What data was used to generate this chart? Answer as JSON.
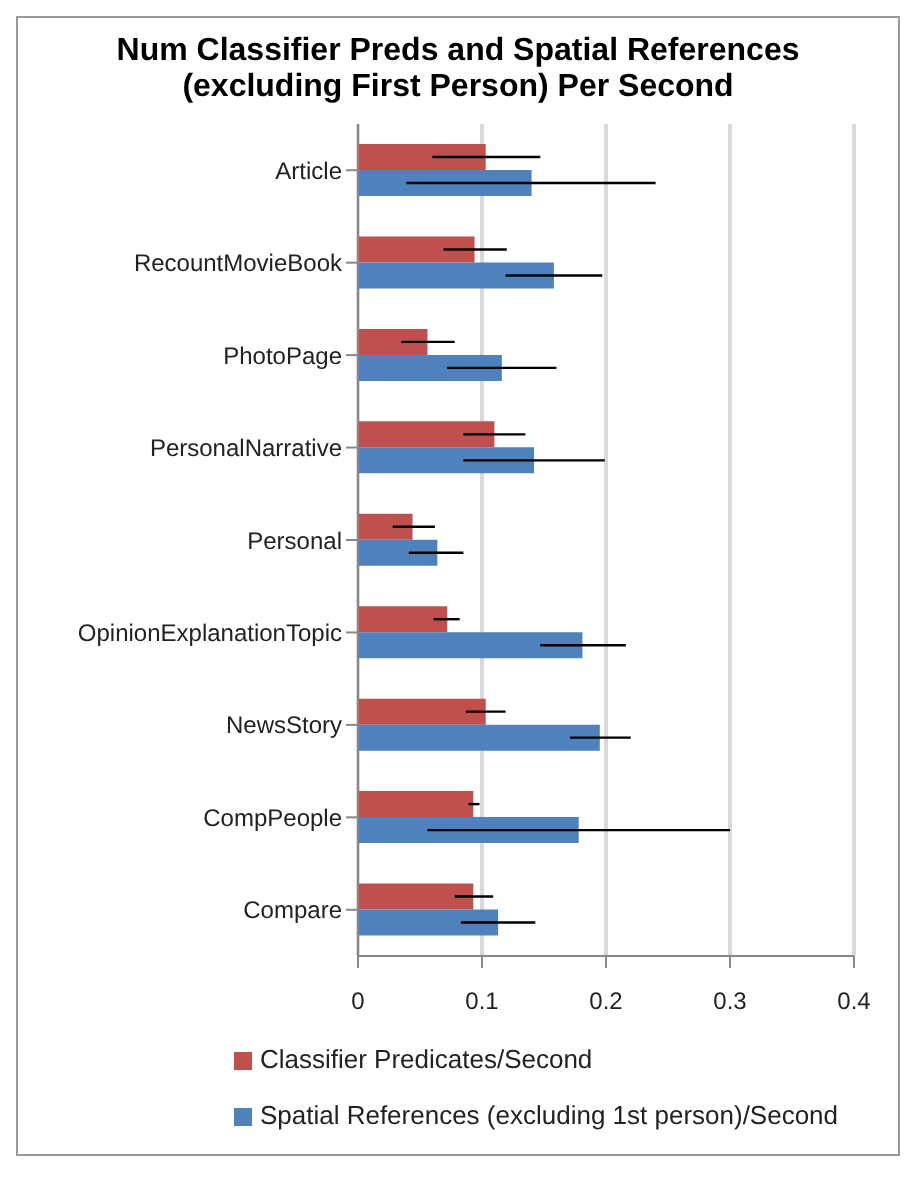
{
  "chart_data": {
    "type": "bar",
    "orientation": "horizontal",
    "title": "Num Classifier Preds and Spatial References (excluding First Person) Per Second",
    "categories": [
      "Article",
      "RecountMovieBook",
      "PhotoPage",
      "PersonalNarrative",
      "Personal",
      "OpinionExplanationTopic",
      "NewsStory",
      "CompPeople",
      "Compare"
    ],
    "series": [
      {
        "name": "Classifier Predicates/Second",
        "color": "#c0504d",
        "values": [
          0.103,
          0.094,
          0.056,
          0.11,
          0.044,
          0.072,
          0.103,
          0.093,
          0.093
        ],
        "errors": [
          [
            0.06,
            0.147
          ],
          [
            0.069,
            0.12
          ],
          [
            0.035,
            0.078
          ],
          [
            0.085,
            0.135
          ],
          [
            0.028,
            0.062
          ],
          [
            0.061,
            0.082
          ],
          [
            0.087,
            0.119
          ],
          [
            0.089,
            0.098
          ],
          [
            0.078,
            0.109
          ]
        ]
      },
      {
        "name": "Spatial References  (excluding 1st person)/Second",
        "color": "#4f81bd",
        "values": [
          0.14,
          0.158,
          0.116,
          0.142,
          0.064,
          0.181,
          0.195,
          0.178,
          0.113
        ],
        "errors": [
          [
            0.039,
            0.24
          ],
          [
            0.119,
            0.197
          ],
          [
            0.072,
            0.16
          ],
          [
            0.085,
            0.199
          ],
          [
            0.041,
            0.085
          ],
          [
            0.147,
            0.216
          ],
          [
            0.171,
            0.22
          ],
          [
            0.056,
            0.3
          ],
          [
            0.083,
            0.143
          ]
        ]
      }
    ],
    "xlim": [
      0,
      0.4
    ],
    "xticks": [
      0,
      0.1,
      0.2,
      0.3,
      0.4
    ],
    "grid": "x",
    "legend": "bottom"
  }
}
